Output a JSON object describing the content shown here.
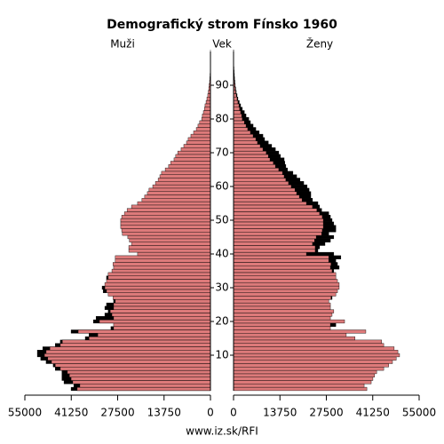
{
  "chart_data": {
    "type": "pyramid",
    "title": "Demografický strom Fínsko 1960",
    "ylabel": "Vek",
    "footer": "www.iz.sk/RFI",
    "y": [
      0,
      1,
      2,
      3,
      4,
      5,
      6,
      7,
      8,
      9,
      10,
      11,
      12,
      13,
      14,
      15,
      16,
      17,
      18,
      19,
      20,
      21,
      22,
      23,
      24,
      25,
      26,
      27,
      28,
      29,
      30,
      31,
      32,
      33,
      34,
      35,
      36,
      37,
      38,
      39,
      40,
      41,
      42,
      43,
      44,
      45,
      46,
      47,
      48,
      49,
      50,
      51,
      52,
      53,
      54,
      55,
      56,
      57,
      58,
      59,
      60,
      61,
      62,
      63,
      64,
      65,
      66,
      67,
      68,
      69,
      70,
      71,
      72,
      73,
      74,
      75,
      76,
      77,
      78,
      79,
      80,
      81,
      82,
      83,
      84,
      85,
      86,
      87,
      88,
      89,
      90,
      91,
      92,
      93,
      94,
      95,
      96,
      97,
      98,
      99,
      100
    ],
    "ylim": [
      0,
      100
    ],
    "yticks": [
      10,
      20,
      30,
      40,
      50,
      60,
      70,
      80,
      90
    ],
    "xlim": [
      0,
      55000
    ],
    "xticks": [
      0,
      13750,
      27500,
      41250,
      55000
    ],
    "excess_color": "#000000",
    "series": [
      {
        "name": "Muži",
        "side": "left",
        "color": "#dd7a7a",
        "values": [
          41300,
          40500,
          43400,
          44000,
          44000,
          44000,
          46000,
          46600,
          48700,
          50300,
          51300,
          51300,
          49700,
          46000,
          44500,
          37100,
          36000,
          41300,
          29500,
          28700,
          34700,
          33900,
          31300,
          30300,
          31300,
          30800,
          28700,
          28900,
          30300,
          31800,
          32100,
          31300,
          30800,
          30800,
          30300,
          29200,
          28700,
          28900,
          28200,
          28200,
          21600,
          24200,
          24200,
          23400,
          24000,
          24500,
          26100,
          26300,
          26600,
          26600,
          26600,
          26300,
          25500,
          24700,
          23400,
          21600,
          20300,
          19500,
          18700,
          18200,
          17100,
          16300,
          15500,
          15000,
          14500,
          13400,
          12400,
          11800,
          10800,
          10300,
          9700,
          8700,
          7900,
          7100,
          6600,
          5800,
          5000,
          4200,
          3700,
          3200,
          2600,
          2400,
          2100,
          1800,
          1600,
          1300,
          1050,
          800,
          650,
          500,
          400,
          260,
          180,
          130,
          80,
          50,
          30,
          20,
          10,
          5,
          3
        ]
      },
      {
        "name": "Ženy",
        "side": "right",
        "color": "#dd7a7a",
        "values": [
          39500,
          38700,
          40800,
          41300,
          41800,
          42400,
          44500,
          46000,
          47100,
          48200,
          49200,
          48700,
          47600,
          44500,
          43900,
          36000,
          33400,
          39200,
          28700,
          30300,
          32900,
          28700,
          29200,
          29700,
          28700,
          28700,
          28200,
          29200,
          30300,
          30800,
          31300,
          31300,
          30800,
          30300,
          30300,
          29700,
          31300,
          30800,
          30300,
          31800,
          29700,
          25000,
          25500,
          27100,
          28700,
          29700,
          28200,
          30300,
          30300,
          29700,
          29200,
          28700,
          28200,
          26100,
          25500,
          25000,
          23400,
          22900,
          22900,
          22400,
          21800,
          20800,
          19700,
          18700,
          17600,
          16000,
          15500,
          15200,
          15000,
          13900,
          13400,
          12400,
          11300,
          10300,
          9200,
          8700,
          7600,
          6600,
          5800,
          5000,
          4500,
          3700,
          3200,
          2600,
          2100,
          1700,
          1300,
          1050,
          800,
          650,
          500,
          400,
          300,
          250,
          180,
          130,
          80,
          50,
          30,
          20,
          10
        ]
      }
    ]
  }
}
